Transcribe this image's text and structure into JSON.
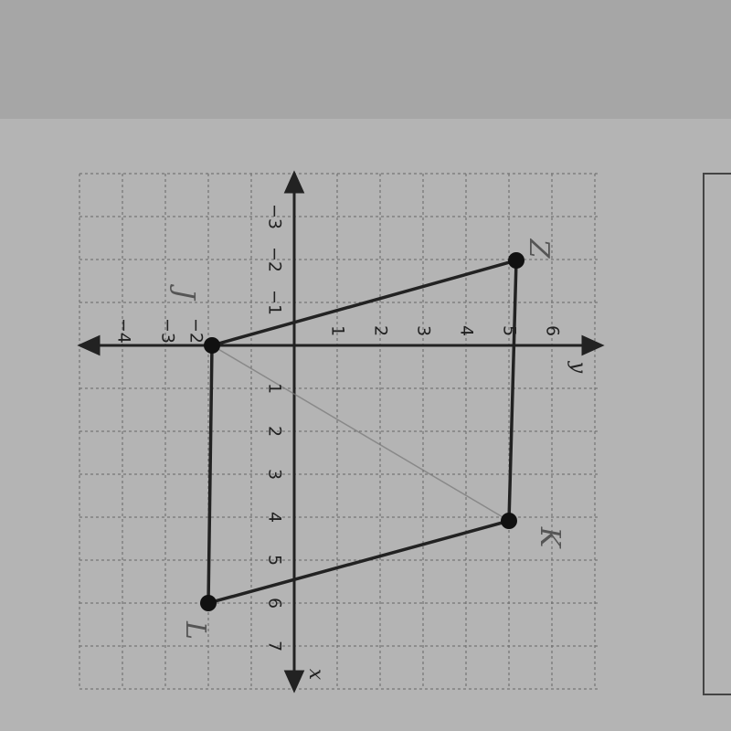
{
  "graph": {
    "x_axis_label": "x",
    "y_axis_label": "y",
    "x_tick_labels": [
      "−3",
      "−2",
      "−1",
      "1",
      "2",
      "3",
      "4",
      "5",
      "6",
      "7"
    ],
    "y_tick_labels": [
      "−4",
      "−3",
      "−2",
      "1",
      "2",
      "3",
      "4",
      "5",
      "6"
    ],
    "vertices": [
      {
        "label": "Z"
      },
      {
        "label": "K"
      },
      {
        "label": "L"
      },
      {
        "label": "J"
      }
    ]
  }
}
